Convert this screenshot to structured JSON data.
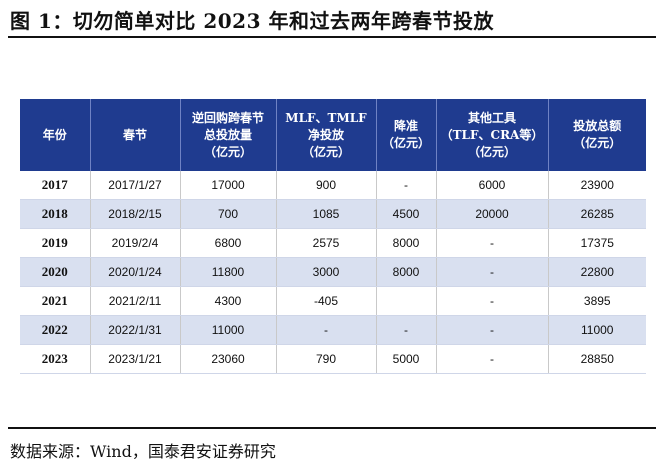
{
  "title": "图 1：切勿简单对比 2023 年和过去两年跨春节投放",
  "source": "数据来源：Wind，国泰君安证券研究",
  "table": {
    "headers": [
      [
        "年份"
      ],
      [
        "春节"
      ],
      [
        "逆回购跨春节",
        "总投放量",
        "（亿元）"
      ],
      [
        "MLF、TMLF",
        "净投放",
        "（亿元）"
      ],
      [
        "降准",
        "（亿元）"
      ],
      [
        "其他工具",
        "（TLF、CRA等）",
        "（亿元）"
      ],
      [
        "投放总额",
        "（亿元）"
      ]
    ],
    "rows": [
      [
        "2017",
        "2017/1/27",
        "17000",
        "900",
        "-",
        "6000",
        "23900"
      ],
      [
        "2018",
        "2018/2/15",
        "700",
        "1085",
        "4500",
        "20000",
        "26285"
      ],
      [
        "2019",
        "2019/2/4",
        "6800",
        "2575",
        "8000",
        "-",
        "17375"
      ],
      [
        "2020",
        "2020/1/24",
        "11800",
        "3000",
        "8000",
        "-",
        "22800"
      ],
      [
        "2021",
        "2021/2/11",
        "4300",
        "-405",
        "",
        "-",
        "3895"
      ],
      [
        "2022",
        "2022/1/31",
        "11000",
        "-",
        "-",
        "-",
        "11000"
      ],
      [
        "2023",
        "2023/1/21",
        "23060",
        "790",
        "5000",
        "-",
        "28850"
      ]
    ]
  },
  "colors": {
    "header_bg": "#1f3b8f",
    "stripe_bg": "#d9e0f0"
  }
}
